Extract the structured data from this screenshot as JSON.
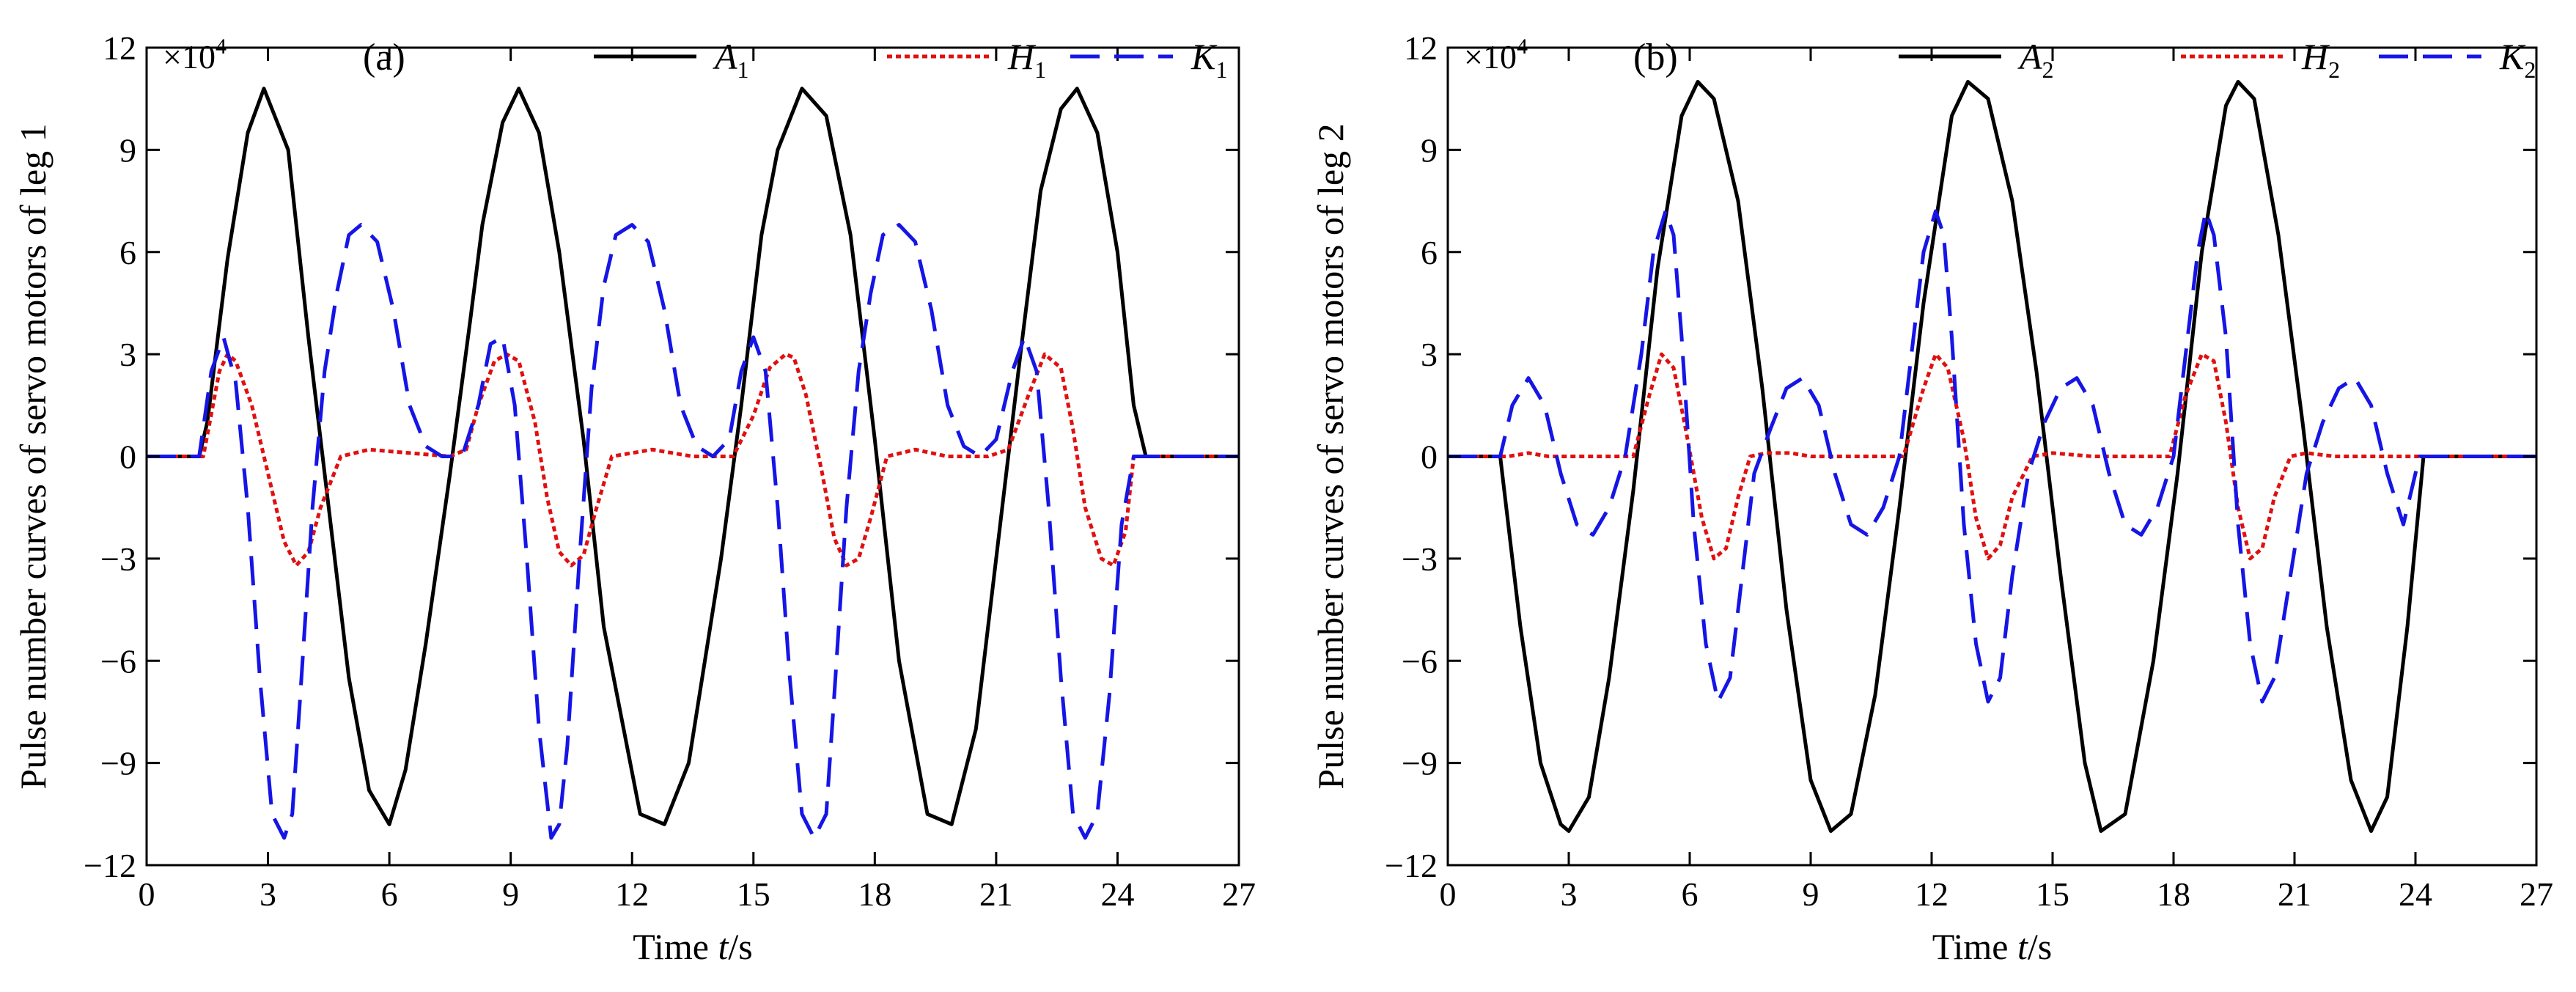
{
  "chart_data": [
    {
      "type": "line",
      "panel_label": "(a)",
      "scale_prefix": "×10",
      "scale_exponent": "4",
      "xlabel_prefix": "Time ",
      "xlabel_var": "t",
      "xlabel_unit": "/s",
      "ylabel": "Pulse number curves of servo motors of leg 1",
      "xlim": [
        0,
        27
      ],
      "ylim": [
        -12,
        12
      ],
      "xticks": [
        0,
        3,
        6,
        9,
        12,
        15,
        18,
        21,
        24,
        27
      ],
      "yticks": [
        -12,
        -9,
        -6,
        -3,
        0,
        3,
        6,
        9,
        12
      ],
      "grid": false,
      "legend_position": "top",
      "series": [
        {
          "name": "A",
          "sub": "1",
          "color": "#000000",
          "style": "solid",
          "x": [
            0,
            1.3,
            1.5,
            2.0,
            2.5,
            2.9,
            3.5,
            4.0,
            4.6,
            5.0,
            5.5,
            6.0,
            6.4,
            6.9,
            7.5,
            8.0,
            8.3,
            8.8,
            9.2,
            9.7,
            10.2,
            10.8,
            11.3,
            12.2,
            12.8,
            13.4,
            14.2,
            14.7,
            15.2,
            15.6,
            16.2,
            16.8,
            17.4,
            18.0,
            18.6,
            19.3,
            19.9,
            20.5,
            21.2,
            21.6,
            22.1,
            22.6,
            23.0,
            23.5,
            24.0,
            24.4,
            24.7,
            27
          ],
          "y": [
            0,
            0,
            1.0,
            5.8,
            9.5,
            10.8,
            9.0,
            3.5,
            -2.5,
            -6.5,
            -9.8,
            -10.8,
            -9.2,
            -5.5,
            -0.5,
            4.0,
            6.8,
            9.8,
            10.8,
            9.5,
            6.0,
            0.5,
            -5.0,
            -10.5,
            -10.8,
            -9.0,
            -3.0,
            1.5,
            6.5,
            9.0,
            10.8,
            10.0,
            6.5,
            0.5,
            -6.0,
            -10.5,
            -10.8,
            -8.0,
            -1.0,
            3.0,
            7.8,
            10.2,
            10.8,
            9.5,
            6.0,
            1.5,
            0,
            0
          ]
        },
        {
          "name": "H",
          "sub": "1",
          "color": "#e01010",
          "style": "dotted",
          "x": [
            0,
            1.4,
            1.8,
            2.0,
            2.2,
            2.6,
            3.0,
            3.4,
            3.7,
            4.0,
            4.3,
            4.8,
            5.5,
            6.5,
            7.5,
            7.9,
            8.2,
            8.6,
            8.9,
            9.2,
            9.6,
            9.9,
            10.2,
            10.5,
            10.8,
            11.1,
            11.5,
            12.5,
            13.5,
            14.5,
            15.0,
            15.4,
            15.8,
            16.0,
            16.3,
            16.7,
            17.0,
            17.3,
            17.6,
            17.9,
            18.3,
            19.0,
            19.8,
            20.8,
            21.3,
            21.8,
            22.2,
            22.6,
            22.9,
            23.2,
            23.6,
            23.9,
            24.2,
            24.4,
            27
          ],
          "y": [
            0,
            0,
            2.5,
            3.0,
            2.8,
            1.5,
            -0.5,
            -2.5,
            -3.2,
            -2.8,
            -1.5,
            0,
            0.2,
            0.1,
            0,
            0.2,
            1.5,
            2.8,
            3.0,
            2.8,
            1.0,
            -1.2,
            -2.8,
            -3.2,
            -2.9,
            -1.6,
            0,
            0.2,
            0,
            0,
            1.2,
            2.6,
            3.0,
            2.9,
            1.8,
            -0.5,
            -2.4,
            -3.2,
            -3.0,
            -1.8,
            0,
            0.2,
            0,
            0,
            0.2,
            1.8,
            3.0,
            2.6,
            0.8,
            -1.5,
            -3.0,
            -3.2,
            -2.2,
            0,
            0
          ]
        },
        {
          "name": "K",
          "sub": "1",
          "color": "#1515e6",
          "style": "dashed",
          "x": [
            0,
            1.3,
            1.6,
            1.9,
            2.2,
            2.5,
            2.8,
            3.1,
            3.4,
            3.6,
            3.8,
            4.1,
            4.4,
            4.7,
            5.0,
            5.3,
            5.7,
            6.1,
            6.5,
            6.9,
            7.3,
            7.8,
            8.2,
            8.5,
            8.8,
            9.1,
            9.4,
            9.7,
            10.0,
            10.2,
            10.4,
            10.7,
            11.0,
            11.3,
            11.6,
            12.0,
            12.4,
            12.8,
            13.2,
            13.6,
            14.0,
            14.4,
            14.7,
            15.0,
            15.3,
            15.6,
            15.9,
            16.2,
            16.5,
            16.8,
            17.0,
            17.3,
            17.6,
            17.9,
            18.2,
            18.6,
            19.0,
            19.4,
            19.8,
            20.2,
            20.6,
            21.0,
            21.4,
            21.7,
            22.0,
            22.3,
            22.6,
            22.9,
            23.2,
            23.5,
            23.8,
            24.1,
            24.4,
            24.6,
            27
          ],
          "y": [
            0,
            0,
            2.5,
            3.5,
            2.2,
            -1.5,
            -6.5,
            -10.5,
            -11.2,
            -10.5,
            -7.0,
            -1.5,
            2.5,
            4.8,
            6.5,
            6.8,
            6.3,
            4.3,
            1.5,
            0.3,
            0,
            0,
            1.5,
            3.3,
            3.5,
            1.5,
            -3.0,
            -8.0,
            -11.2,
            -10.8,
            -8.5,
            -3.0,
            2.0,
            5.0,
            6.5,
            6.8,
            6.3,
            4.3,
            1.5,
            0.3,
            0,
            0.5,
            2.5,
            3.5,
            2.5,
            -1.5,
            -6.5,
            -10.5,
            -11.2,
            -10.5,
            -7.0,
            -1.5,
            2.5,
            4.8,
            6.5,
            6.8,
            6.3,
            4.3,
            1.5,
            0.3,
            0,
            0.5,
            2.5,
            3.5,
            2.5,
            -1.5,
            -6.5,
            -10.5,
            -11.2,
            -10.5,
            -7.0,
            -2.0,
            0,
            0,
            0
          ]
        }
      ]
    },
    {
      "type": "line",
      "panel_label": "(b)",
      "scale_prefix": "×10",
      "scale_exponent": "4",
      "xlabel_prefix": "Time ",
      "xlabel_var": "t",
      "xlabel_unit": "/s",
      "ylabel": "Pulse number curves of servo motors of leg 2",
      "xlim": [
        0,
        27
      ],
      "ylim": [
        -12,
        12
      ],
      "xticks": [
        0,
        3,
        6,
        9,
        12,
        15,
        18,
        21,
        24,
        27
      ],
      "yticks": [
        -12,
        -9,
        -6,
        -3,
        0,
        3,
        6,
        9,
        12
      ],
      "grid": false,
      "legend_position": "top",
      "series": [
        {
          "name": "A",
          "sub": "2",
          "color": "#000000",
          "style": "solid",
          "x": [
            0,
            1.3,
            1.8,
            2.3,
            2.8,
            3.0,
            3.5,
            4.0,
            4.6,
            5.2,
            5.8,
            6.2,
            6.6,
            7.2,
            7.8,
            8.4,
            9.0,
            9.5,
            10.0,
            10.6,
            11.2,
            11.8,
            12.5,
            12.9,
            13.4,
            14.0,
            14.6,
            15.2,
            15.8,
            16.2,
            16.8,
            17.5,
            18.1,
            18.7,
            19.3,
            19.6,
            20.0,
            20.6,
            21.2,
            21.8,
            22.4,
            22.9,
            23.3,
            23.8,
            24.2,
            27
          ],
          "y": [
            0,
            0,
            -5.0,
            -9.0,
            -10.8,
            -11.0,
            -10.0,
            -6.5,
            -1.0,
            5.5,
            10.0,
            11.0,
            10.5,
            7.5,
            2.0,
            -4.5,
            -9.5,
            -11.0,
            -10.5,
            -7.0,
            -1.5,
            4.5,
            10.0,
            11.0,
            10.5,
            7.5,
            2.5,
            -3.5,
            -9.0,
            -11.0,
            -10.5,
            -6.0,
            -0.5,
            6.0,
            10.3,
            11.0,
            10.5,
            6.5,
            1.0,
            -5.0,
            -9.5,
            -11.0,
            -10.0,
            -5.0,
            0,
            0
          ]
        },
        {
          "name": "H",
          "sub": "2",
          "color": "#e01010",
          "style": "dotted",
          "x": [
            0,
            1.5,
            2.0,
            2.5,
            4.6,
            5.0,
            5.3,
            5.6,
            5.9,
            6.3,
            6.6,
            6.9,
            7.2,
            7.5,
            7.9,
            8.5,
            9.0,
            9.5,
            11.3,
            11.8,
            12.1,
            12.4,
            12.8,
            13.1,
            13.4,
            13.7,
            14.0,
            14.5,
            15.0,
            16.0,
            17.9,
            18.3,
            18.7,
            19.0,
            19.3,
            19.6,
            19.9,
            20.2,
            20.5,
            20.9,
            21.3,
            22.0,
            27
          ],
          "y": [
            0,
            0,
            0.1,
            0,
            0,
            1.8,
            3.0,
            2.6,
            0.8,
            -1.8,
            -3.0,
            -2.7,
            -1.2,
            0,
            0.1,
            0.1,
            0,
            0,
            0,
            2.0,
            3.0,
            2.6,
            0.5,
            -1.8,
            -3.0,
            -2.6,
            -1.2,
            0,
            0.1,
            0,
            0,
            1.8,
            3.0,
            2.8,
            1.0,
            -1.5,
            -3.0,
            -2.7,
            -1.2,
            0,
            0.1,
            0,
            0
          ]
        },
        {
          "name": "K",
          "sub": "2",
          "color": "#1515e6",
          "style": "dashed",
          "x": [
            0,
            1.3,
            1.6,
            2.0,
            2.4,
            2.8,
            3.2,
            3.6,
            4.0,
            4.4,
            4.8,
            5.1,
            5.4,
            5.6,
            5.8,
            6.1,
            6.4,
            6.7,
            7.0,
            7.3,
            7.6,
            8.0,
            8.4,
            8.8,
            9.2,
            9.6,
            10.0,
            10.4,
            10.8,
            11.2,
            11.5,
            11.8,
            12.1,
            12.3,
            12.5,
            12.8,
            13.1,
            13.4,
            13.7,
            14.0,
            14.4,
            14.8,
            15.2,
            15.6,
            16.0,
            16.4,
            16.8,
            17.2,
            17.6,
            18.0,
            18.3,
            18.6,
            18.8,
            19.0,
            19.3,
            19.6,
            19.9,
            20.2,
            20.5,
            20.9,
            21.3,
            21.7,
            22.1,
            22.5,
            22.9,
            23.3,
            23.7,
            24.1,
            27
          ],
          "y": [
            0,
            0,
            1.5,
            2.3,
            1.5,
            -0.5,
            -2.0,
            -2.3,
            -1.5,
            0,
            3.0,
            6.0,
            7.2,
            6.5,
            3.5,
            -2.0,
            -5.5,
            -7.2,
            -6.5,
            -3.5,
            -0.5,
            0.8,
            2.0,
            2.3,
            1.5,
            -0.5,
            -2.0,
            -2.3,
            -1.5,
            0,
            3.0,
            6.0,
            7.2,
            6.5,
            3.5,
            -2.0,
            -5.5,
            -7.2,
            -6.5,
            -3.5,
            -0.5,
            1.0,
            2.0,
            2.3,
            1.5,
            -0.5,
            -2.0,
            -2.3,
            -1.5,
            0,
            3.0,
            6.0,
            7.2,
            6.5,
            3.5,
            -2.0,
            -5.5,
            -7.2,
            -6.5,
            -3.5,
            -0.5,
            1.0,
            2.0,
            2.3,
            1.5,
            -0.5,
            -2.0,
            0,
            0
          ]
        }
      ]
    }
  ]
}
